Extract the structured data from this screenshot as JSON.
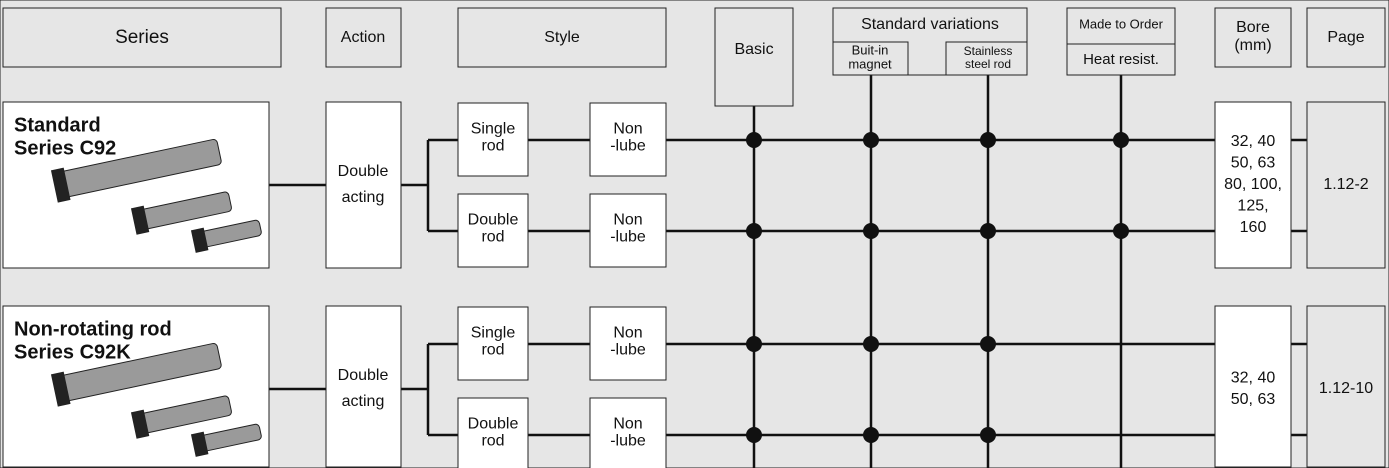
{
  "headers": {
    "series": "Series",
    "action": "Action",
    "style": "Style",
    "basic": "Basic",
    "standard_variations": {
      "title": "Standard variations",
      "options": [
        [
          "Buit-in",
          "magnet"
        ],
        [
          "Stainless",
          "steel rod"
        ]
      ]
    },
    "made_to_order": {
      "title": "Made to Order",
      "options": [
        "Heat resist."
      ]
    },
    "bore": [
      "Bore",
      "(mm)"
    ],
    "page": "Page"
  },
  "rows": [
    {
      "title": [
        "Standard",
        "Series C92"
      ],
      "action": [
        "Double",
        "acting"
      ],
      "styles": [
        {
          "style": [
            "Single",
            "rod"
          ],
          "lube": [
            "Non",
            "-lube"
          ],
          "dots": [
            true,
            true,
            true,
            true
          ]
        },
        {
          "style": [
            "Double",
            "rod"
          ],
          "lube": [
            "Non",
            "-lube"
          ],
          "dots": [
            true,
            true,
            true,
            true
          ]
        }
      ],
      "bore": [
        "32, 40",
        "50, 63",
        "80, 100,",
        "125,",
        "160"
      ],
      "page": "1.12-2"
    },
    {
      "title": [
        "Non-rotating rod",
        "Series C92K"
      ],
      "action": [
        "Double",
        "acting"
      ],
      "styles": [
        {
          "style": [
            "Single",
            "rod"
          ],
          "lube": [
            "Non",
            "-lube"
          ],
          "dots": [
            true,
            true,
            true,
            false
          ]
        },
        {
          "style": [
            "Double",
            "rod"
          ],
          "lube": [
            "Non",
            "-lube"
          ],
          "dots": [
            true,
            true,
            true,
            false
          ]
        }
      ],
      "bore": [
        "32, 40",
        "50, 63"
      ],
      "page": "1.12-10"
    }
  ]
}
